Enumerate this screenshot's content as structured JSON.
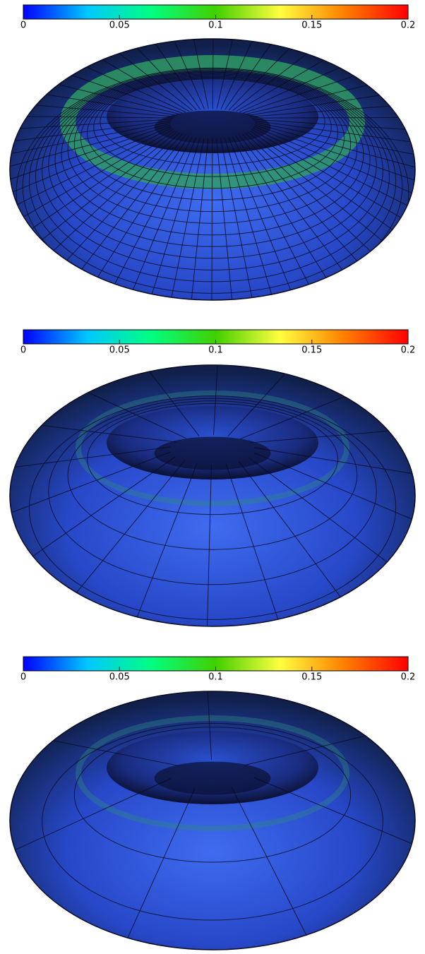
{
  "panels": [
    {
      "colorbar": {
        "lim": [
          0,
          0.2
        ],
        "ticks": [
          0,
          0.05,
          0.1,
          0.15,
          0.2
        ],
        "colors": [
          "#0000ff",
          "#00c8ff",
          "#00ff80",
          "#40d000",
          "#ffff40",
          "#ff8000",
          "#ff0000"
        ]
      }
    },
    {
      "colorbar": {
        "lim": [
          0,
          0.2
        ],
        "ticks": [
          0,
          0.05,
          0.1,
          0.15,
          0.2
        ],
        "colors": [
          "#0000ff",
          "#00c8ff",
          "#00ff80",
          "#40d000",
          "#ffff40",
          "#ff8000",
          "#ff0000"
        ]
      }
    },
    {
      "colorbar": {
        "lim": [
          0,
          0.2
        ],
        "ticks": [
          0,
          0.05,
          0.1,
          0.15,
          0.2
        ],
        "colors": [
          "#0000ff",
          "#00c8ff",
          "#00ff80",
          "#40d000",
          "#ffff40",
          "#ff8000",
          "#ff0000"
        ]
      }
    }
  ]
}
